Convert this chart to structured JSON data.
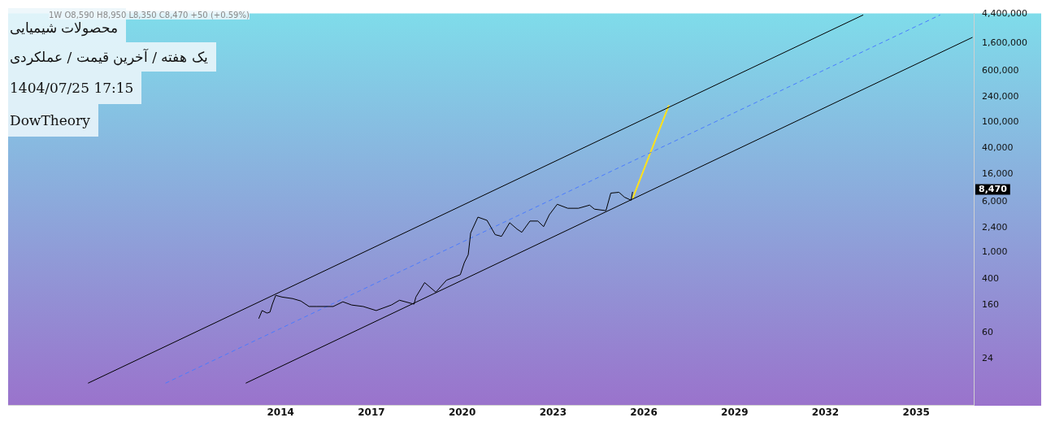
{
  "chart_data": {
    "type": "line",
    "title": "محصولات شیمیایی",
    "subtitle": "یک هفته / آخرین قیمت / عملکردی",
    "annotations": [
      "1W O8,590 H8,950 L8,350 C8,470 +50 (+0.59%)",
      "1404/07/25 17:15",
      "DowTheory",
      "8,470"
    ],
    "series": [
      {
        "color": "#000000",
        "line_style": "solid",
        "x": [
          2013.28,
          2013.39,
          2013.55,
          2013.65,
          2013.73,
          2013.84,
          2014.05,
          2014.4,
          2014.67,
          2014.94,
          2015.2,
          2015.74,
          2016.06,
          2016.35,
          2016.73,
          2017.16,
          2017.66,
          2017.93,
          2018.41,
          2018.47,
          2018.76,
          2019.13,
          2019.48,
          2019.94,
          2020.07,
          2020.2,
          2020.28,
          2020.52,
          2020.82,
          2021.09,
          2021.3,
          2021.57,
          2021.81,
          2021.97,
          2022.24,
          2022.5,
          2022.69,
          2022.88,
          2023.14,
          2023.49,
          2023.84,
          2024.21,
          2024.37,
          2024.75,
          2024.91,
          2025.18,
          2025.36,
          2025.58,
          2025.63
        ],
        "values": [
          98,
          130,
          119,
          123,
          163,
          222,
          209,
          198,
          182,
          150,
          150,
          150,
          177,
          158,
          150,
          130,
          158,
          187,
          163,
          209,
          348,
          248,
          378,
          460,
          700,
          930,
          1990,
          3480,
          3110,
          1880,
          1770,
          2860,
          2290,
          2040,
          3030,
          3030,
          2490,
          3790,
          5470,
          4750,
          4750,
          5310,
          4610,
          4370,
          8110,
          8340,
          7030,
          6300,
          8470
        ]
      },
      {
        "color": "#000000",
        "line_style": "solid",
        "x": [
          2007.64,
          2033.25
        ],
        "values": [
          10.1,
          4280000
        ]
      },
      {
        "color": "#000000",
        "line_style": "solid",
        "x": [
          2012.85,
          2036.86
        ],
        "values": [
          10.1,
          1945000
        ]
      },
      {
        "color": "#4a7bff",
        "line_style": "dashed",
        "x": [
          2010.2,
          2035.79
        ],
        "values": [
          10.1,
          4280000
        ]
      },
      {
        "color": "#ffe11a",
        "line_style": "solid",
        "x": [
          2025.63,
          2026.83
        ],
        "values": [
          6700,
          179000
        ]
      }
    ],
    "log": "y",
    "marker": "none",
    "xlim": [
      2005,
      2036.9
    ],
    "ylim": [
      4.7,
      4500000
    ],
    "xticks": [
      2014,
      2017,
      2020,
      2023,
      2026,
      2029,
      2032,
      2035
    ],
    "yticks": [
      24,
      60,
      160,
      400,
      {
        "value": 1000,
        "label": "1,000"
      },
      {
        "value": 2400,
        "label": "2,400"
      },
      {
        "value": 6000,
        "label": "6,000"
      },
      {
        "value": 16000,
        "label": "16,000"
      },
      {
        "value": 40000,
        "label": "40,000"
      },
      {
        "value": 100000,
        "label": "100,000"
      },
      {
        "value": 240000,
        "label": "240,000"
      },
      {
        "value": 600000,
        "label": "600,000"
      },
      {
        "value": 1600000,
        "label": "1,600,000"
      },
      {
        "value": 4400000,
        "label": "4,400,000"
      }
    ],
    "legend": false,
    "grid": false
  }
}
